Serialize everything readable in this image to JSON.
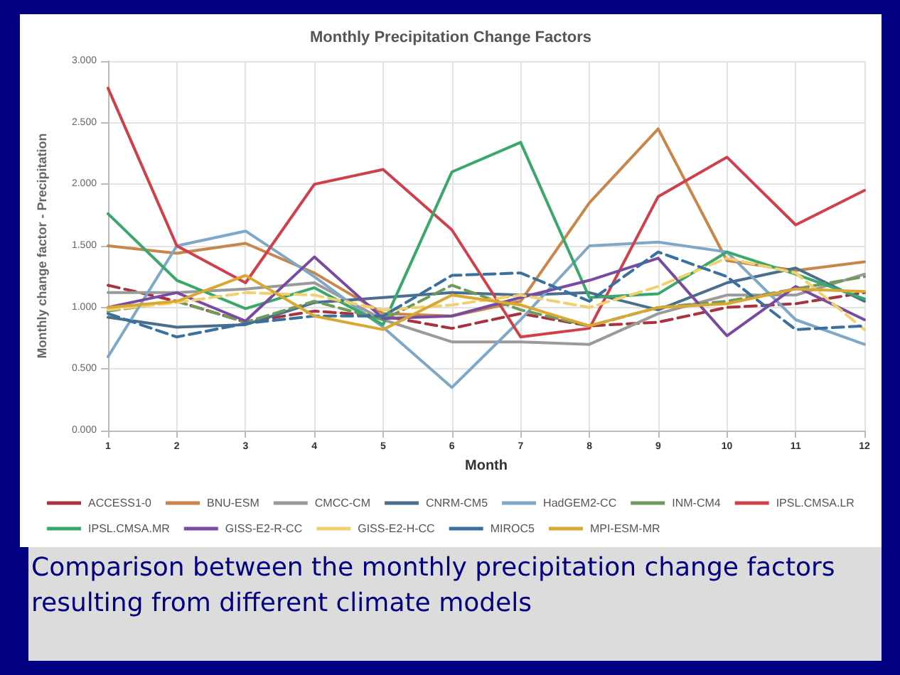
{
  "chart_data": {
    "type": "line",
    "title": "Monthly Precipitation Change Factors",
    "xlabel": "Month",
    "ylabel": "Monthly change factor - Precipitation",
    "annotations": [
      "Comparison between the monthly precipitation change factors resulting from different climate models"
    ],
    "x": [
      1,
      2,
      3,
      4,
      5,
      6,
      7,
      8,
      9,
      10,
      11,
      12
    ],
    "xlim": [
      1,
      12
    ],
    "xticks": [
      1,
      2,
      3,
      4,
      5,
      6,
      7,
      8,
      9,
      10,
      11,
      12
    ],
    "ylim": [
      0,
      3
    ],
    "yticks": [
      {
        "value": 0,
        "label": "0.000"
      },
      {
        "value": 0.5,
        "label": "0.500"
      },
      {
        "value": 1,
        "label": "1.000"
      },
      {
        "value": 1.5,
        "label": "1.500"
      },
      {
        "value": 2,
        "label": "2.000"
      },
      {
        "value": 2.5,
        "label": "2.500"
      },
      {
        "value": 3,
        "label": "3.000"
      }
    ],
    "grid": true,
    "legend": "bottom",
    "marker": "none",
    "series": [
      {
        "name": "ACCESS1-0",
        "color": "#a8323e",
        "line_style": "dashed",
        "values": [
          1.18,
          1.05,
          0.88,
          0.97,
          0.93,
          0.83,
          0.95,
          0.85,
          0.88,
          1.0,
          1.03,
          1.12
        ]
      },
      {
        "name": "BNU-ESM",
        "color": "#c8864a",
        "line_style": "solid",
        "values": [
          1.5,
          1.44,
          1.52,
          1.28,
          0.95,
          0.93,
          1.05,
          1.85,
          2.45,
          1.38,
          1.3,
          1.37
        ]
      },
      {
        "name": "CMCC-CM",
        "color": "#9a9a9a",
        "line_style": "solid",
        "values": [
          1.12,
          1.12,
          1.15,
          1.2,
          0.9,
          0.72,
          0.72,
          0.7,
          0.95,
          1.1,
          1.1,
          1.27
        ]
      },
      {
        "name": "CNRM-CM5",
        "color": "#4a6f8e",
        "line_style": "solid",
        "values": [
          0.92,
          0.84,
          0.86,
          1.04,
          1.08,
          1.12,
          1.1,
          1.12,
          0.98,
          1.2,
          1.32,
          1.05
        ]
      },
      {
        "name": "HadGEM2-CC",
        "color": "#7fa8c8",
        "line_style": "solid",
        "values": [
          0.6,
          1.5,
          1.62,
          1.25,
          0.84,
          0.35,
          0.9,
          1.5,
          1.53,
          1.45,
          0.9,
          0.7
        ]
      },
      {
        "name": "INM-CM4",
        "color": "#6e9a5a",
        "line_style": "dashed",
        "values": [
          0.97,
          1.05,
          0.88,
          1.05,
          0.9,
          1.18,
          0.98,
          0.85,
          1.0,
          1.05,
          1.15,
          1.25
        ]
      },
      {
        "name": "IPSL.CMSA.LR",
        "color": "#d0404a",
        "line_style": "solid",
        "values": [
          2.78,
          1.5,
          1.2,
          2.0,
          2.12,
          1.63,
          0.76,
          0.83,
          1.9,
          2.22,
          1.67,
          1.95
        ]
      },
      {
        "name": "IPSL.CMSA.MR",
        "color": "#3aa86a",
        "line_style": "solid",
        "values": [
          1.76,
          1.22,
          0.99,
          1.16,
          0.86,
          2.1,
          2.34,
          1.08,
          1.11,
          1.45,
          1.27,
          1.07
        ]
      },
      {
        "name": "GISS-E2-R-CC",
        "color": "#7a4aa0",
        "line_style": "solid",
        "values": [
          1.0,
          1.12,
          0.89,
          1.41,
          0.91,
          0.93,
          1.08,
          1.22,
          1.4,
          0.77,
          1.17,
          0.9
        ]
      },
      {
        "name": "GISS-E2-H-CC",
        "color": "#f0d070",
        "line_style": "dashed",
        "values": [
          0.98,
          1.04,
          1.12,
          1.1,
          0.98,
          1.02,
          1.1,
          1.0,
          1.17,
          1.4,
          1.28,
          0.82
        ]
      },
      {
        "name": "MIROC5",
        "color": "#3a70a0",
        "line_style": "dashed",
        "values": [
          0.95,
          0.76,
          0.87,
          0.93,
          0.93,
          1.26,
          1.28,
          1.05,
          1.45,
          1.25,
          0.82,
          0.85
        ]
      },
      {
        "name": "MPI-ESM-MR",
        "color": "#d8a830",
        "line_style": "solid",
        "values": [
          1.0,
          1.05,
          1.26,
          0.93,
          0.82,
          1.1,
          1.02,
          0.85,
          1.0,
          1.03,
          1.15,
          1.13
        ]
      }
    ]
  }
}
